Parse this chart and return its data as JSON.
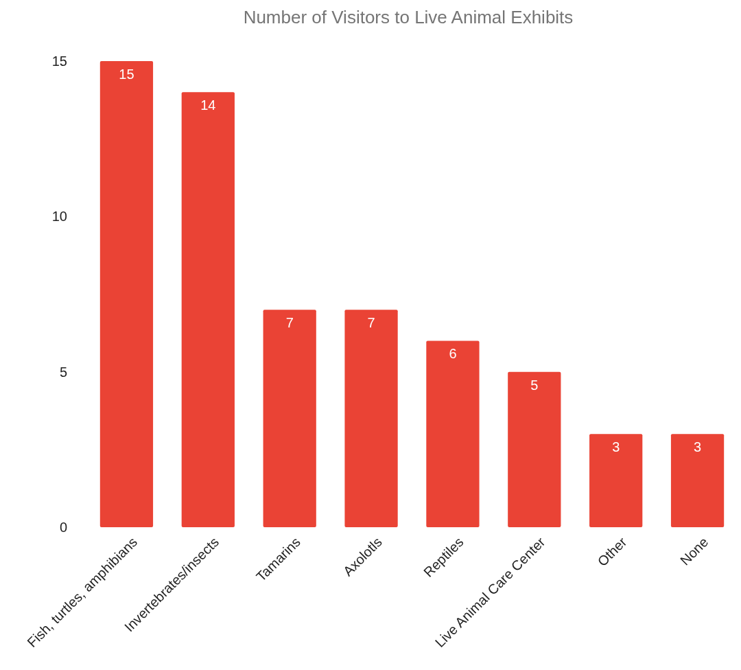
{
  "chart_data": {
    "type": "bar",
    "title": "Number of Visitors to Live Animal Exhibits",
    "categories": [
      "Fish, turtles, amphibians",
      "Invertebrates/insects",
      "Tamarins",
      "Axolotls",
      "Reptiles",
      "Live Animal Care Center",
      "Other",
      "None"
    ],
    "values": [
      15,
      14,
      7,
      7,
      6,
      5,
      3,
      3
    ],
    "color": "#ea4335",
    "ylim": [
      0,
      15
    ],
    "yticks": [
      0,
      5,
      10,
      15
    ],
    "data_labels": true
  }
}
